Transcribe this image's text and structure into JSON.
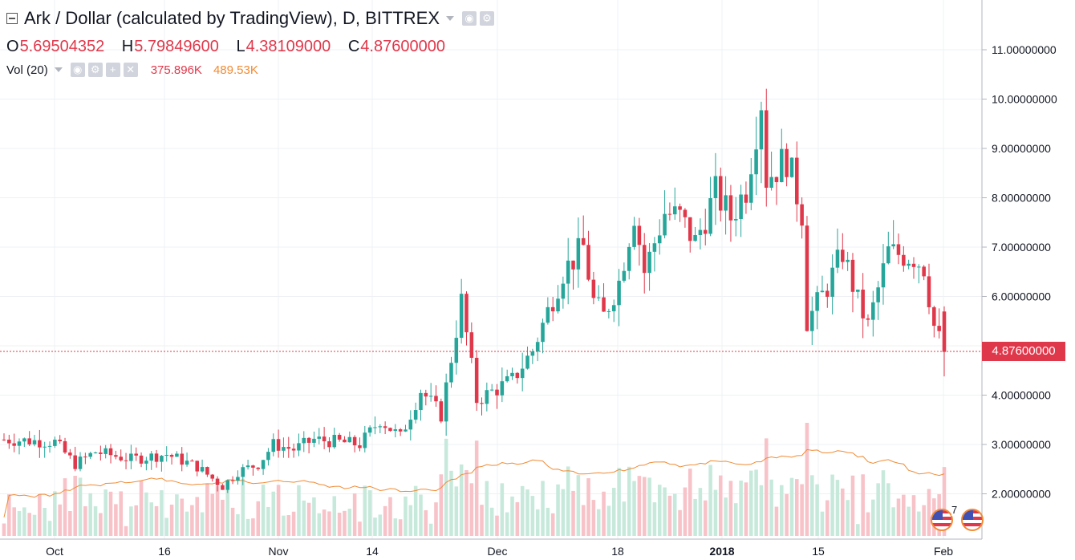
{
  "header": {
    "title": "Ark / Dollar (calculated by TradingView), D, BITTREX",
    "ohlc": [
      {
        "key": "O",
        "value": "5.69504352"
      },
      {
        "key": "H",
        "value": "5.79849600"
      },
      {
        "key": "L",
        "value": "4.38109000"
      },
      {
        "key": "C",
        "value": "4.87600000"
      }
    ]
  },
  "volume_indicator": {
    "label": "Vol (20)",
    "value": "375.896K",
    "ma_value": "489.53K"
  },
  "last_price_label": "4.87600000",
  "event_badge_text": "7",
  "colors": {
    "up": "#26a69a",
    "down": "#e0384b",
    "volume_ma": "#f08b34",
    "up_volume": "#c7e9dc",
    "down_volume": "#f7c2c8"
  },
  "chart_data": {
    "type": "candlestick",
    "symbol": "Ark / Dollar",
    "interval": "D",
    "exchange": "BITTREX",
    "x_tick_labels": [
      "Oct",
      "16",
      "Nov",
      "14",
      "Dec",
      "18",
      "2018",
      "15",
      "Feb"
    ],
    "y_tick_labels": [
      "2.00000000",
      "3.00000000",
      "4.00000000",
      "5.00000000",
      "6.00000000",
      "7.00000000",
      "8.00000000",
      "9.00000000",
      "10.00000000",
      "11.00000000"
    ],
    "last_price": 4.876,
    "anchors": [
      [
        0,
        3.1
      ],
      [
        10,
        3.05
      ],
      [
        14,
        2.6
      ],
      [
        18,
        2.85
      ],
      [
        25,
        2.7
      ],
      [
        32,
        2.8
      ],
      [
        38,
        2.55
      ],
      [
        43,
        2.15
      ],
      [
        46,
        2.45
      ],
      [
        50,
        2.6
      ],
      [
        53,
        3.0
      ],
      [
        57,
        2.9
      ],
      [
        61,
        3.1
      ],
      [
        66,
        3.05
      ],
      [
        70,
        3.0
      ],
      [
        74,
        3.5
      ],
      [
        78,
        3.15
      ],
      [
        82,
        4.1
      ],
      [
        86,
        3.6
      ],
      [
        90,
        5.9
      ],
      [
        93,
        3.9
      ],
      [
        100,
        4.3
      ],
      [
        104,
        4.9
      ],
      [
        110,
        6.5
      ],
      [
        114,
        7.0
      ],
      [
        116,
        5.9
      ],
      [
        118,
        5.6
      ],
      [
        121,
        6.3
      ],
      [
        124,
        7.7
      ],
      [
        126,
        6.5
      ],
      [
        130,
        7.7
      ],
      [
        133,
        7.6
      ],
      [
        136,
        7.1
      ],
      [
        140,
        8.1
      ],
      [
        143,
        7.6
      ],
      [
        146,
        8.2
      ],
      [
        149,
        10.0
      ],
      [
        150,
        8.4
      ],
      [
        154,
        8.8
      ],
      [
        157,
        7.7
      ],
      [
        158,
        5.5
      ],
      [
        162,
        6.2
      ],
      [
        165,
        6.9
      ],
      [
        168,
        5.9
      ],
      [
        170,
        5.4
      ],
      [
        174,
        6.9
      ],
      [
        179,
        6.8
      ],
      [
        181,
        6.6
      ],
      [
        183,
        5.4
      ],
      [
        185,
        4.88
      ]
    ]
  }
}
